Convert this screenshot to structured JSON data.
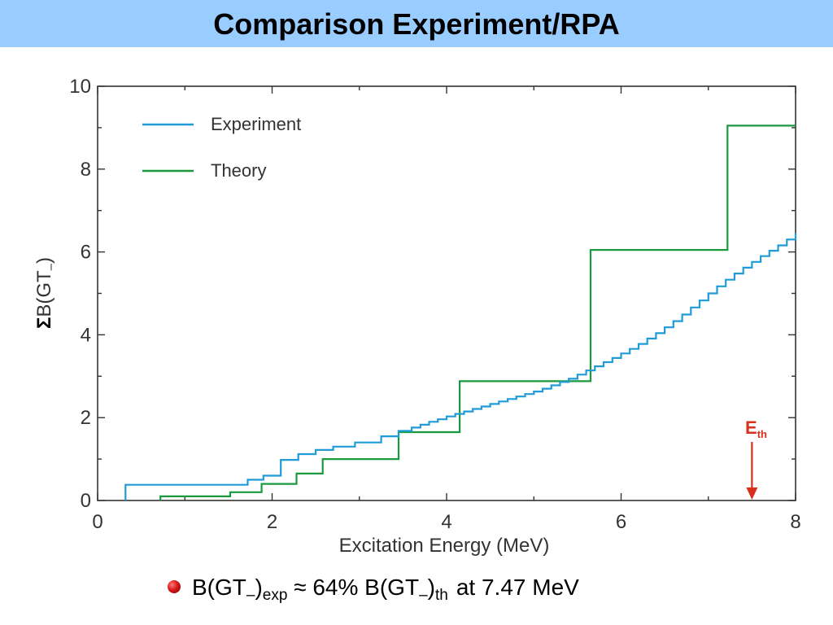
{
  "page": {
    "title": "Comparison Experiment/RPA",
    "bullet": {
      "text1": "B(GT",
      "minus": "–",
      "close": ")",
      "sub_exp": "exp",
      "approx": " ≈ 64% B(GT",
      "minus2": "–",
      "close2": ")",
      "sub_th": "th",
      "tail": "at 7.47 MeV"
    }
  },
  "colors": {
    "experiment": "#1f9bd7",
    "theory": "#1a9a3c",
    "threshold": "#d7301f",
    "title_bg": "#99ccff"
  },
  "chart_data": {
    "type": "line",
    "step": true,
    "xlabel": "Excitation Energy (MeV)",
    "ylabel_prefix": "Σ",
    "ylabel_main": "B(GT",
    "ylabel_sub": "–",
    "ylabel_close": ")",
    "xlim": [
      0,
      8
    ],
    "ylim": [
      0,
      10
    ],
    "xticks": [
      "0",
      "2",
      "4",
      "6",
      "8"
    ],
    "yticks": [
      "0",
      "2",
      "4",
      "6",
      "8",
      "10"
    ],
    "legend_position": "top-left",
    "series": [
      {
        "name": "Experiment",
        "color": "#1f9bd7",
        "points": [
          [
            0.32,
            0.0
          ],
          [
            0.32,
            0.38
          ],
          [
            1.72,
            0.38
          ],
          [
            1.72,
            0.5
          ],
          [
            1.9,
            0.5
          ],
          [
            1.9,
            0.6
          ],
          [
            2.1,
            0.6
          ],
          [
            2.1,
            0.98
          ],
          [
            2.3,
            0.98
          ],
          [
            2.3,
            1.12
          ],
          [
            2.5,
            1.12
          ],
          [
            2.5,
            1.22
          ],
          [
            2.7,
            1.22
          ],
          [
            2.7,
            1.3
          ],
          [
            2.95,
            1.3
          ],
          [
            2.95,
            1.4
          ],
          [
            3.25,
            1.4
          ],
          [
            3.25,
            1.55
          ],
          [
            3.45,
            1.55
          ],
          [
            3.45,
            1.68
          ],
          [
            3.6,
            1.68
          ],
          [
            3.6,
            1.76
          ],
          [
            3.7,
            1.76
          ],
          [
            3.7,
            1.83
          ],
          [
            3.8,
            1.83
          ],
          [
            3.8,
            1.9
          ],
          [
            3.9,
            1.9
          ],
          [
            3.9,
            1.96
          ],
          [
            4.0,
            1.96
          ],
          [
            4.0,
            2.03
          ],
          [
            4.1,
            2.03
          ],
          [
            4.1,
            2.09
          ],
          [
            4.2,
            2.09
          ],
          [
            4.2,
            2.15
          ],
          [
            4.3,
            2.15
          ],
          [
            4.3,
            2.21
          ],
          [
            4.4,
            2.21
          ],
          [
            4.4,
            2.27
          ],
          [
            4.5,
            2.27
          ],
          [
            4.5,
            2.33
          ],
          [
            4.6,
            2.33
          ],
          [
            4.6,
            2.39
          ],
          [
            4.7,
            2.39
          ],
          [
            4.7,
            2.45
          ],
          [
            4.8,
            2.45
          ],
          [
            4.8,
            2.51
          ],
          [
            4.9,
            2.51
          ],
          [
            4.9,
            2.57
          ],
          [
            5.0,
            2.57
          ],
          [
            5.0,
            2.63
          ],
          [
            5.1,
            2.63
          ],
          [
            5.1,
            2.7
          ],
          [
            5.2,
            2.7
          ],
          [
            5.2,
            2.78
          ],
          [
            5.3,
            2.78
          ],
          [
            5.3,
            2.86
          ],
          [
            5.4,
            2.86
          ],
          [
            5.4,
            2.94
          ],
          [
            5.5,
            2.94
          ],
          [
            5.5,
            3.04
          ],
          [
            5.6,
            3.04
          ],
          [
            5.6,
            3.14
          ],
          [
            5.7,
            3.14
          ],
          [
            5.7,
            3.24
          ],
          [
            5.8,
            3.24
          ],
          [
            5.8,
            3.34
          ],
          [
            5.9,
            3.34
          ],
          [
            5.9,
            3.44
          ],
          [
            6.0,
            3.44
          ],
          [
            6.0,
            3.55
          ],
          [
            6.1,
            3.55
          ],
          [
            6.1,
            3.66
          ],
          [
            6.2,
            3.66
          ],
          [
            6.2,
            3.78
          ],
          [
            6.3,
            3.78
          ],
          [
            6.3,
            3.91
          ],
          [
            6.4,
            3.91
          ],
          [
            6.4,
            4.04
          ],
          [
            6.5,
            4.04
          ],
          [
            6.5,
            4.18
          ],
          [
            6.6,
            4.18
          ],
          [
            6.6,
            4.33
          ],
          [
            6.7,
            4.33
          ],
          [
            6.7,
            4.49
          ],
          [
            6.8,
            4.49
          ],
          [
            6.8,
            4.66
          ],
          [
            6.9,
            4.66
          ],
          [
            6.9,
            4.83
          ],
          [
            7.0,
            4.83
          ],
          [
            7.0,
            5.0
          ],
          [
            7.1,
            5.0
          ],
          [
            7.1,
            5.17
          ],
          [
            7.2,
            5.17
          ],
          [
            7.2,
            5.33
          ],
          [
            7.3,
            5.33
          ],
          [
            7.3,
            5.48
          ],
          [
            7.4,
            5.48
          ],
          [
            7.4,
            5.62
          ],
          [
            7.5,
            5.62
          ],
          [
            7.5,
            5.76
          ],
          [
            7.6,
            5.76
          ],
          [
            7.6,
            5.9
          ],
          [
            7.7,
            5.9
          ],
          [
            7.7,
            6.03
          ],
          [
            7.8,
            6.03
          ],
          [
            7.8,
            6.16
          ],
          [
            7.9,
            6.16
          ],
          [
            7.9,
            6.3
          ],
          [
            8.0,
            6.3
          ],
          [
            8.0,
            6.45
          ]
        ]
      },
      {
        "name": "Theory",
        "color": "#1a9a3c",
        "points": [
          [
            0.72,
            0.0
          ],
          [
            0.72,
            0.1
          ],
          [
            1.52,
            0.1
          ],
          [
            1.52,
            0.2
          ],
          [
            1.88,
            0.2
          ],
          [
            1.88,
            0.4
          ],
          [
            2.28,
            0.4
          ],
          [
            2.28,
            0.65
          ],
          [
            2.58,
            0.65
          ],
          [
            2.58,
            1.0
          ],
          [
            3.45,
            1.0
          ],
          [
            3.45,
            1.65
          ],
          [
            4.15,
            1.65
          ],
          [
            4.15,
            2.88
          ],
          [
            5.65,
            2.88
          ],
          [
            5.65,
            6.05
          ],
          [
            7.22,
            6.05
          ],
          [
            7.22,
            9.05
          ],
          [
            8.0,
            9.05
          ]
        ]
      }
    ],
    "annotations": [
      {
        "label_main": "E",
        "label_sub": "th",
        "x": 7.5,
        "arrow_to_y": 0.0,
        "color": "#d7301f"
      }
    ]
  }
}
